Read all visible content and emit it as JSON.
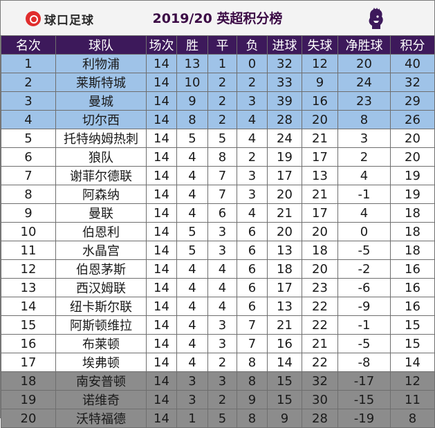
{
  "brand": "球口足球",
  "title": "2019/20 英超积分榜",
  "colors": {
    "header_bg": "#3d195b",
    "champions_league": "#9fc3e8",
    "relegation": "#8c8c8c",
    "title_color": "#3b0a45"
  },
  "icons": [
    "qiukou-logo-icon",
    "premier-league-lion-icon"
  ],
  "columns": [
    "名次",
    "球队",
    "场次",
    "胜",
    "平",
    "负",
    "进球",
    "失球",
    "净胜球",
    "积分"
  ],
  "rows": [
    {
      "rank": "1",
      "team": "利物浦",
      "played": "14",
      "won": "13",
      "drawn": "1",
      "lost": "0",
      "gf": "32",
      "ga": "12",
      "gd": "20",
      "pts": "40",
      "zone": "cl"
    },
    {
      "rank": "2",
      "team": "莱斯特城",
      "played": "14",
      "won": "10",
      "drawn": "2",
      "lost": "2",
      "gf": "33",
      "ga": "9",
      "gd": "24",
      "pts": "32",
      "zone": "cl"
    },
    {
      "rank": "3",
      "team": "曼城",
      "played": "14",
      "won": "9",
      "drawn": "2",
      "lost": "3",
      "gf": "39",
      "ga": "16",
      "gd": "23",
      "pts": "29",
      "zone": "cl"
    },
    {
      "rank": "4",
      "team": "切尔西",
      "played": "14",
      "won": "8",
      "drawn": "2",
      "lost": "4",
      "gf": "28",
      "ga": "20",
      "gd": "8",
      "pts": "26",
      "zone": "cl"
    },
    {
      "rank": "5",
      "team": "托特纳姆热刺",
      "played": "14",
      "won": "5",
      "drawn": "5",
      "lost": "4",
      "gf": "24",
      "ga": "21",
      "gd": "3",
      "pts": "20",
      "zone": "mid"
    },
    {
      "rank": "6",
      "team": "狼队",
      "played": "14",
      "won": "4",
      "drawn": "8",
      "lost": "2",
      "gf": "19",
      "ga": "17",
      "gd": "2",
      "pts": "20",
      "zone": "mid"
    },
    {
      "rank": "7",
      "team": "谢菲尔德联",
      "played": "14",
      "won": "4",
      "drawn": "7",
      "lost": "3",
      "gf": "17",
      "ga": "13",
      "gd": "4",
      "pts": "19",
      "zone": "mid"
    },
    {
      "rank": "8",
      "team": "阿森纳",
      "played": "14",
      "won": "4",
      "drawn": "7",
      "lost": "3",
      "gf": "20",
      "ga": "21",
      "gd": "-1",
      "pts": "19",
      "zone": "mid"
    },
    {
      "rank": "9",
      "team": "曼联",
      "played": "14",
      "won": "4",
      "drawn": "6",
      "lost": "4",
      "gf": "21",
      "ga": "17",
      "gd": "4",
      "pts": "18",
      "zone": "mid"
    },
    {
      "rank": "10",
      "team": "伯恩利",
      "played": "14",
      "won": "5",
      "drawn": "3",
      "lost": "6",
      "gf": "20",
      "ga": "20",
      "gd": "0",
      "pts": "18",
      "zone": "mid"
    },
    {
      "rank": "11",
      "team": "水晶宫",
      "played": "14",
      "won": "5",
      "drawn": "3",
      "lost": "6",
      "gf": "13",
      "ga": "18",
      "gd": "-5",
      "pts": "18",
      "zone": "mid"
    },
    {
      "rank": "12",
      "team": "伯恩茅斯",
      "played": "14",
      "won": "4",
      "drawn": "4",
      "lost": "6",
      "gf": "18",
      "ga": "20",
      "gd": "-2",
      "pts": "16",
      "zone": "mid"
    },
    {
      "rank": "13",
      "team": "西汉姆联",
      "played": "14",
      "won": "4",
      "drawn": "4",
      "lost": "6",
      "gf": "17",
      "ga": "23",
      "gd": "-6",
      "pts": "16",
      "zone": "mid"
    },
    {
      "rank": "14",
      "team": "纽卡斯尔联",
      "played": "14",
      "won": "4",
      "drawn": "4",
      "lost": "6",
      "gf": "13",
      "ga": "22",
      "gd": "-9",
      "pts": "16",
      "zone": "mid"
    },
    {
      "rank": "15",
      "team": "阿斯顿维拉",
      "played": "14",
      "won": "4",
      "drawn": "3",
      "lost": "7",
      "gf": "21",
      "ga": "22",
      "gd": "-1",
      "pts": "15",
      "zone": "mid"
    },
    {
      "rank": "16",
      "team": "布莱顿",
      "played": "14",
      "won": "4",
      "drawn": "3",
      "lost": "7",
      "gf": "16",
      "ga": "21",
      "gd": "-5",
      "pts": "15",
      "zone": "mid"
    },
    {
      "rank": "17",
      "team": "埃弗顿",
      "played": "14",
      "won": "4",
      "drawn": "2",
      "lost": "8",
      "gf": "14",
      "ga": "22",
      "gd": "-8",
      "pts": "14",
      "zone": "mid"
    },
    {
      "rank": "18",
      "team": "南安普顿",
      "played": "14",
      "won": "3",
      "drawn": "3",
      "lost": "8",
      "gf": "15",
      "ga": "32",
      "gd": "-17",
      "pts": "12",
      "zone": "rel"
    },
    {
      "rank": "19",
      "team": "诺维奇",
      "played": "14",
      "won": "3",
      "drawn": "2",
      "lost": "9",
      "gf": "15",
      "ga": "30",
      "gd": "-15",
      "pts": "11",
      "zone": "rel"
    },
    {
      "rank": "20",
      "team": "沃特福德",
      "played": "14",
      "won": "1",
      "drawn": "5",
      "lost": "8",
      "gf": "9",
      "ga": "28",
      "gd": "-19",
      "pts": "8",
      "zone": "rel"
    }
  ]
}
